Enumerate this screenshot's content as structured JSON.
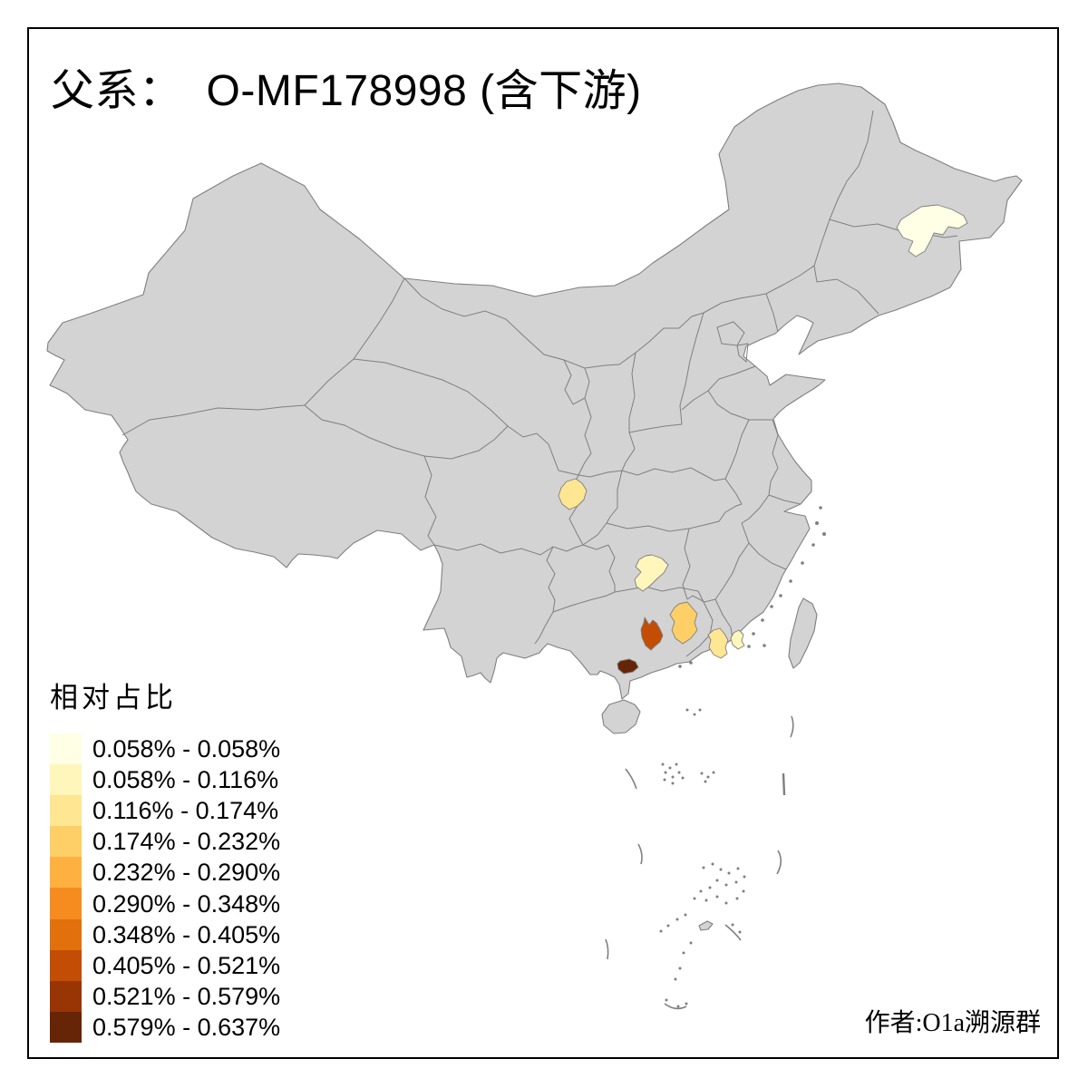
{
  "title": {
    "prefix": "父系：",
    "code": "O-MF178998 (含下游)"
  },
  "legend": {
    "title": "相对占比",
    "classes": [
      {
        "range": "0.058% - 0.058%",
        "color": "#FFFFE5"
      },
      {
        "range": "0.058% - 0.116%",
        "color": "#FEF6BB"
      },
      {
        "range": "0.116% - 0.174%",
        "color": "#FEE692"
      },
      {
        "range": "0.174% - 0.232%",
        "color": "#FECF66"
      },
      {
        "range": "0.232% - 0.290%",
        "color": "#FEB140"
      },
      {
        "range": "0.290% - 0.348%",
        "color": "#F68C20"
      },
      {
        "range": "0.348% - 0.405%",
        "color": "#E2700D"
      },
      {
        "range": "0.405% - 0.521%",
        "color": "#C34D04"
      },
      {
        "range": "0.521% - 0.579%",
        "color": "#993404"
      },
      {
        "range": "0.579% - 0.637%",
        "color": "#662506"
      }
    ]
  },
  "map": {
    "land_color": "#D3D3D3",
    "boundary_color": "#7F7F7F",
    "sea_color": "#FFFFFF",
    "regions": [
      {
        "id": "northeast-heilongjiang",
        "legend_class": 1,
        "color": "#FFFFE5"
      },
      {
        "id": "sichuan-basin",
        "legend_class": 3,
        "color": "#FEE692"
      },
      {
        "id": "guizhou",
        "legend_class": 2,
        "color": "#FEF6BB"
      },
      {
        "id": "guangxi-northeast",
        "legend_class": 4,
        "color": "#FECF66"
      },
      {
        "id": "guangxi-central",
        "legend_class": 8,
        "color": "#C34D04"
      },
      {
        "id": "guangxi-south-coast",
        "legend_class": 10,
        "color": "#662506"
      },
      {
        "id": "guangdong-west",
        "legend_class": 3,
        "color": "#FEE692"
      },
      {
        "id": "guangdong-central",
        "legend_class": 2,
        "color": "#FEF6BB"
      }
    ]
  },
  "author_credit": "作者:O1a溯源群"
}
